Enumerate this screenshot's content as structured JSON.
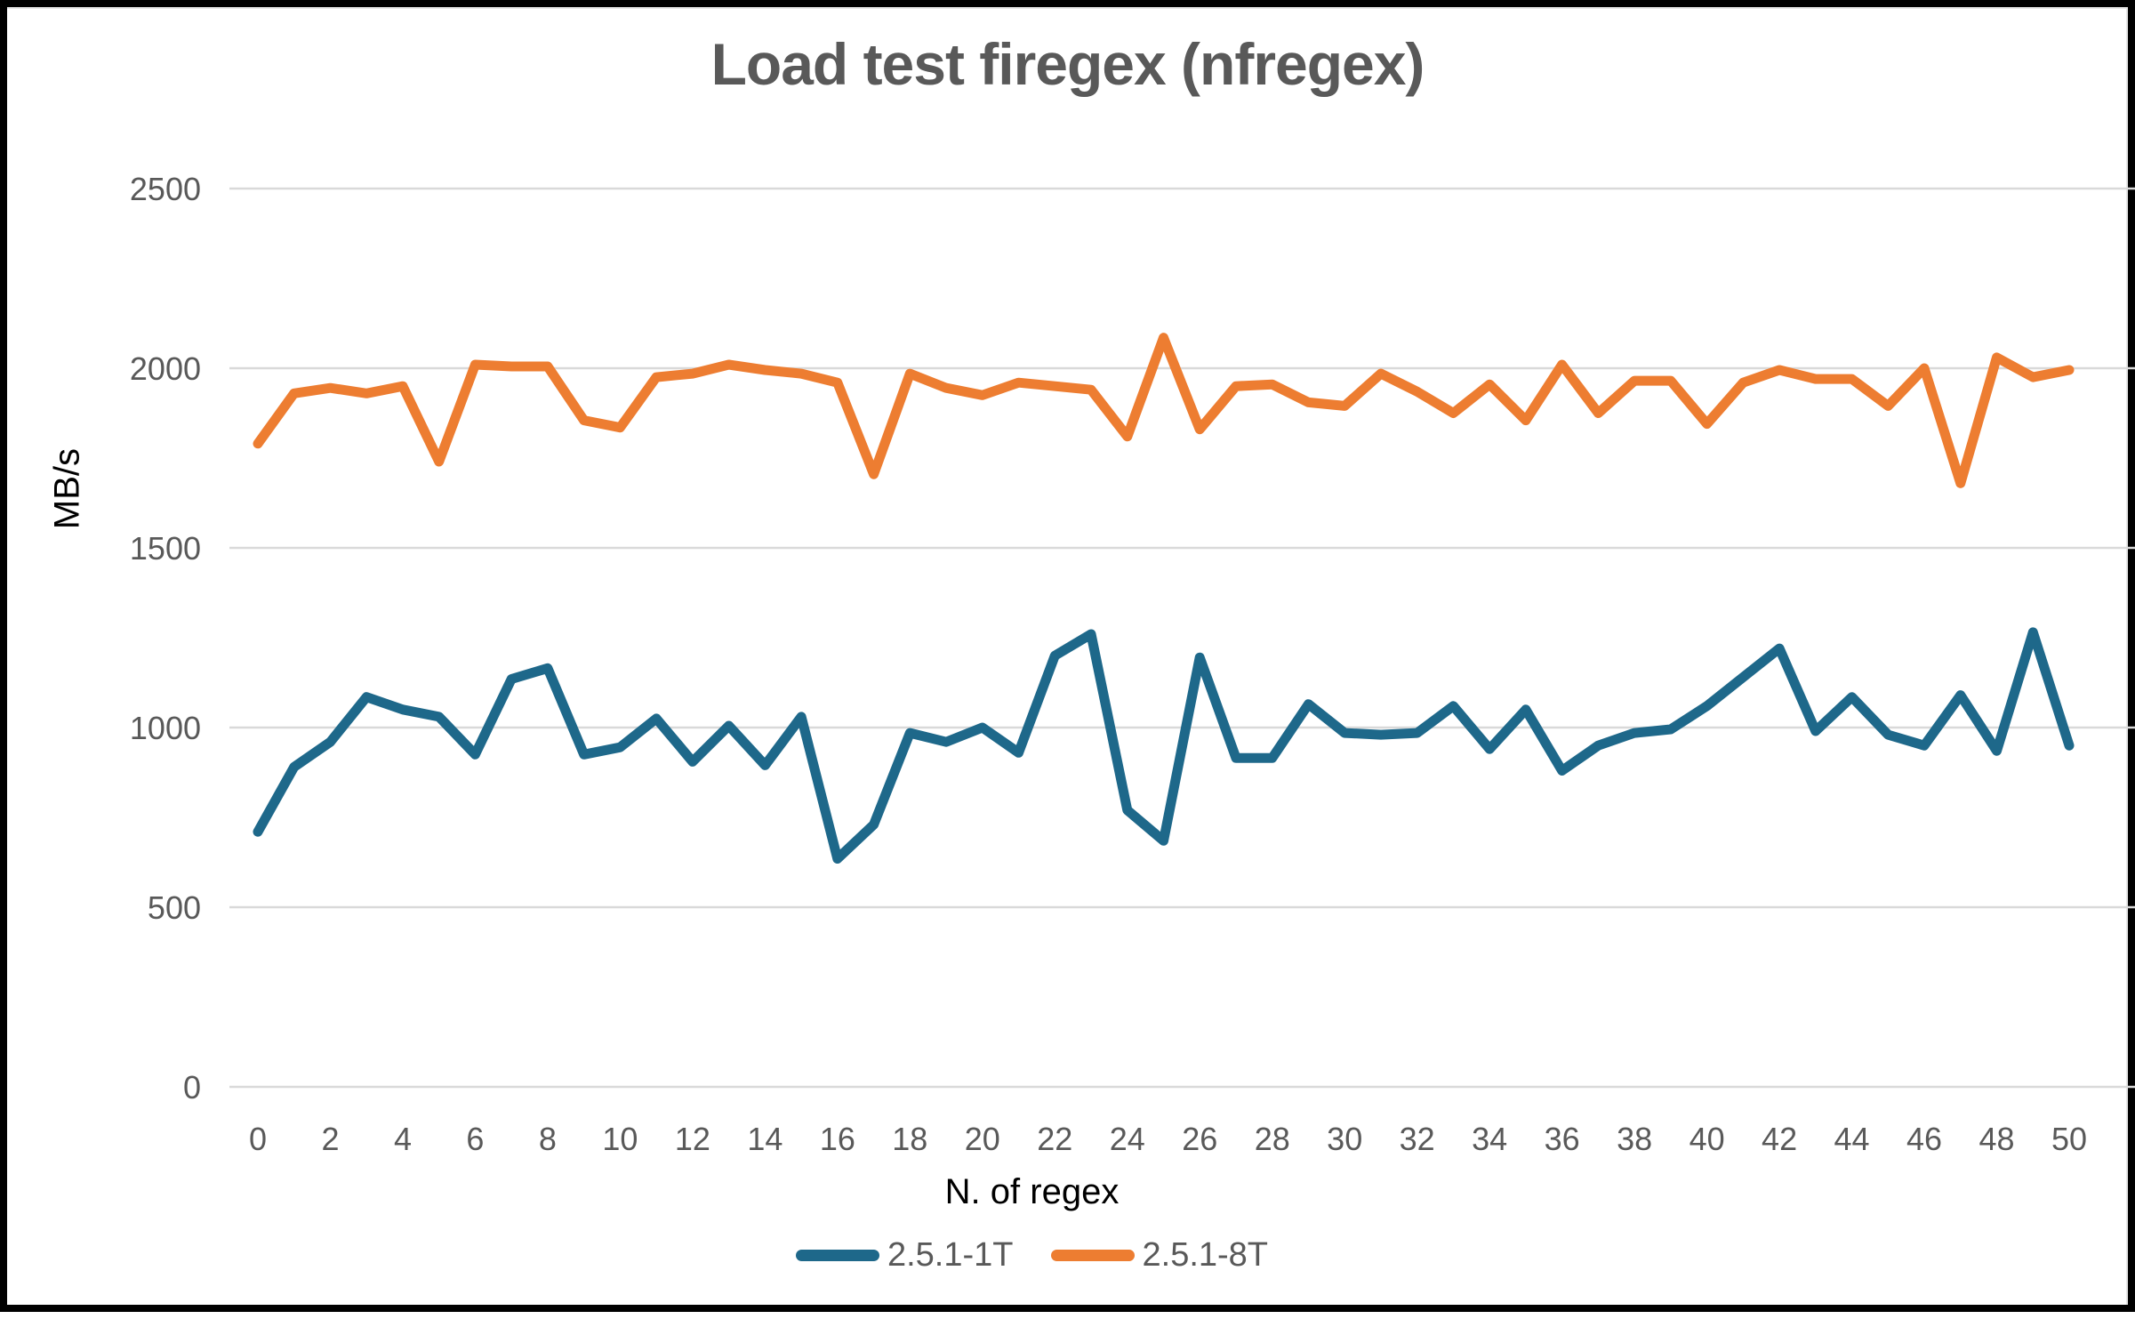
{
  "title": "Load test firegex (nfregex)",
  "axes": {
    "y": {
      "label": "MB/s",
      "min": 0,
      "max": 2500,
      "step": 500,
      "ticks": [
        "0",
        "500",
        "1000",
        "1500",
        "2000",
        "2500"
      ]
    },
    "x": {
      "label": "N. of regex",
      "min": 0,
      "max": 50,
      "tick_step": 2,
      "ticks": [
        "0",
        "2",
        "4",
        "6",
        "8",
        "10",
        "12",
        "14",
        "16",
        "18",
        "20",
        "22",
        "24",
        "26",
        "28",
        "30",
        "32",
        "34",
        "36",
        "38",
        "40",
        "42",
        "44",
        "46",
        "48",
        "50"
      ]
    }
  },
  "legend": [
    {
      "name": "2.5.1-1T",
      "color": "#1e688a"
    },
    {
      "name": "2.5.1-8T",
      "color": "#ed7d31"
    }
  ],
  "colors": {
    "gridline": "#d9d9d9",
    "tick_text": "#595959",
    "title_text": "#595959",
    "axis_title_text": "#000000"
  },
  "chart_data": {
    "type": "line",
    "title": "Load test firegex (nfregex)",
    "xlabel": "N. of regex",
    "ylabel": "MB/s",
    "ylim": [
      0,
      2500
    ],
    "grid": true,
    "legend_position": "bottom",
    "x": [
      0,
      1,
      2,
      3,
      4,
      5,
      6,
      7,
      8,
      9,
      10,
      11,
      12,
      13,
      14,
      15,
      16,
      17,
      18,
      19,
      20,
      21,
      22,
      23,
      24,
      25,
      26,
      27,
      28,
      29,
      30,
      31,
      32,
      33,
      34,
      35,
      36,
      37,
      38,
      39,
      40,
      41,
      42,
      43,
      44,
      45,
      46,
      47,
      48,
      49,
      50
    ],
    "series": [
      {
        "name": "2.5.1-1T",
        "color": "#1e688a",
        "values": [
          710,
          890,
          960,
          1085,
          1050,
          1030,
          925,
          1135,
          1165,
          925,
          945,
          1025,
          905,
          1005,
          895,
          1030,
          635,
          730,
          985,
          960,
          1000,
          930,
          1200,
          1260,
          770,
          685,
          1195,
          915,
          915,
          1065,
          985,
          980,
          985,
          1060,
          940,
          1050,
          880,
          950,
          985,
          995,
          1060,
          1140,
          1220,
          990,
          1085,
          980,
          950,
          1090,
          935,
          1265,
          950
        ]
      },
      {
        "name": "2.5.1-8T",
        "color": "#ed7d31",
        "values": [
          1790,
          1930,
          1945,
          1930,
          1950,
          1740,
          2010,
          2005,
          2005,
          1855,
          1835,
          1975,
          1985,
          2010,
          1995,
          1985,
          1960,
          1705,
          1985,
          1945,
          1925,
          1960,
          1950,
          1940,
          1810,
          2085,
          1830,
          1950,
          1955,
          1905,
          1895,
          1985,
          1935,
          1875,
          1955,
          1855,
          2010,
          1875,
          1965,
          1965,
          1845,
          1960,
          1995,
          1970,
          1970,
          1895,
          2000,
          1680,
          2030,
          1975,
          1995
        ]
      }
    ]
  }
}
